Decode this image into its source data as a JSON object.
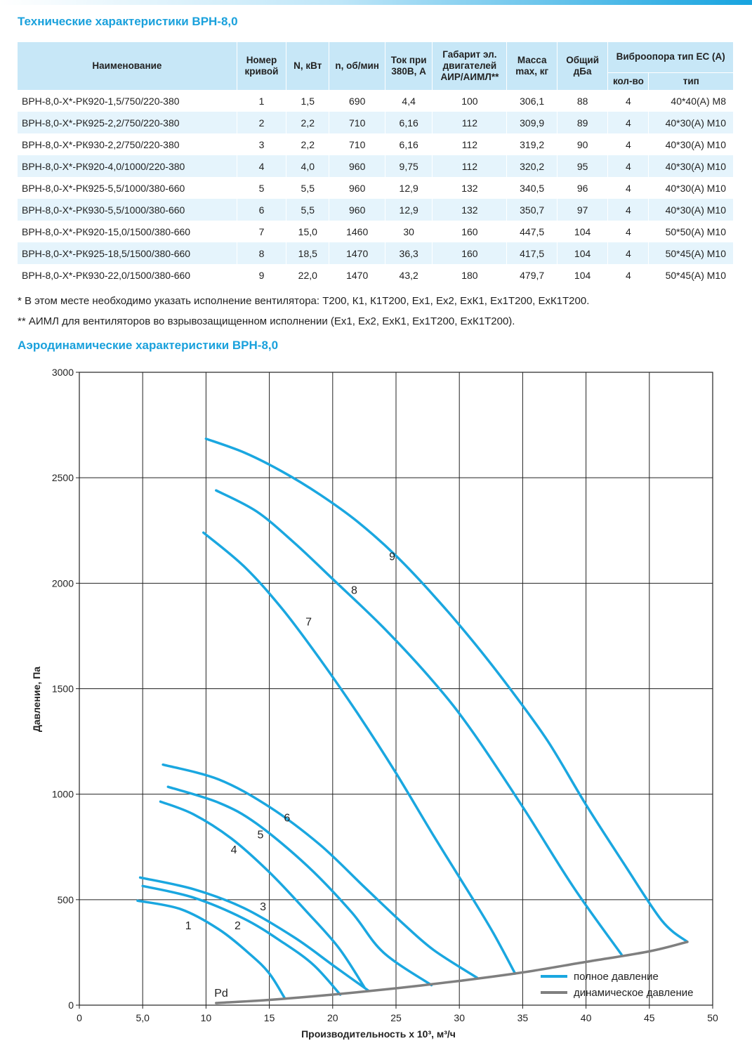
{
  "title_tech": "Технические характеристики ВРН-8,0",
  "title_aero": "Аэродинамические характеристики ВРН-8,0",
  "table": {
    "headers": {
      "name": "Наименование",
      "curve": "Номер кривой",
      "power": "N, кВт",
      "rpm": "n, об/мин",
      "current": "Ток при 380В, А",
      "frame": "Габарит эл. двигателей АИР/АИМЛ**",
      "mass": "Масса max, кг",
      "noise": "Общий дБа",
      "vibro": "Виброопора тип ЕС (А)",
      "vibro_qty": "кол-во",
      "vibro_type": "тип"
    },
    "rows": [
      {
        "name": "ВРН-8,0-Х*-РК920-1,5/750/220-380",
        "curve": "1",
        "power": "1,5",
        "rpm": "690",
        "current": "4,4",
        "frame": "100",
        "mass": "306,1",
        "noise": "88",
        "qty": "4",
        "type": "40*40(А) М8"
      },
      {
        "name": "ВРН-8,0-Х*-РК925-2,2/750/220-380",
        "curve": "2",
        "power": "2,2",
        "rpm": "710",
        "current": "6,16",
        "frame": "112",
        "mass": "309,9",
        "noise": "89",
        "qty": "4",
        "type": "40*30(А) М10"
      },
      {
        "name": "ВРН-8,0-Х*-РК930-2,2/750/220-380",
        "curve": "3",
        "power": "2,2",
        "rpm": "710",
        "current": "6,16",
        "frame": "112",
        "mass": "319,2",
        "noise": "90",
        "qty": "4",
        "type": "40*30(А) М10"
      },
      {
        "name": "ВРН-8,0-Х*-РК920-4,0/1000/220-380",
        "curve": "4",
        "power": "4,0",
        "rpm": "960",
        "current": "9,75",
        "frame": "112",
        "mass": "320,2",
        "noise": "95",
        "qty": "4",
        "type": "40*30(А) М10"
      },
      {
        "name": "ВРН-8,0-Х*-РК925-5,5/1000/380-660",
        "curve": "5",
        "power": "5,5",
        "rpm": "960",
        "current": "12,9",
        "frame": "132",
        "mass": "340,5",
        "noise": "96",
        "qty": "4",
        "type": "40*30(А) М10"
      },
      {
        "name": "ВРН-8,0-Х*-РК930-5,5/1000/380-660",
        "curve": "6",
        "power": "5,5",
        "rpm": "960",
        "current": "12,9",
        "frame": "132",
        "mass": "350,7",
        "noise": "97",
        "qty": "4",
        "type": "40*30(А) М10"
      },
      {
        "name": "ВРН-8,0-Х*-РК920-15,0/1500/380-660",
        "curve": "7",
        "power": "15,0",
        "rpm": "1460",
        "current": "30",
        "frame": "160",
        "mass": "447,5",
        "noise": "104",
        "qty": "4",
        "type": "50*50(А) М10"
      },
      {
        "name": "ВРН-8,0-Х*-РК925-18,5/1500/380-660",
        "curve": "8",
        "power": "18,5",
        "rpm": "1470",
        "current": "36,3",
        "frame": "160",
        "mass": "417,5",
        "noise": "104",
        "qty": "4",
        "type": "50*45(А) М10"
      },
      {
        "name": "ВРН-8,0-Х*-РК930-22,0/1500/380-660",
        "curve": "9",
        "power": "22,0",
        "rpm": "1470",
        "current": "43,2",
        "frame": "180",
        "mass": "479,7",
        "noise": "104",
        "qty": "4",
        "type": "50*45(А) М10"
      }
    ]
  },
  "notes": [
    "* В этом месте необходимо указать исполнение вентилятора: Т200, К1, К1Т200, Ех1, Ех2, ЕхК1, Ех1Т200, ЕхК1Т200.",
    "** АИМЛ для вентиляторов во взрывозащищенном исполнении (Ех1, Ех2, ЕхК1, Ех1Т200, ЕхК1Т200)."
  ],
  "colors": {
    "accent": "#1aa1dc",
    "header_bg": "#c7e7f7",
    "row_alt_bg": "#e5f4fc",
    "full_pressure": "#1aa7e0",
    "dynamic_pressure": "#7f7f7f"
  },
  "chart_data": {
    "type": "line",
    "xlabel": "Производительность х 10³, м³/ч",
    "ylabel": "Давление, Па",
    "xlim": [
      0,
      50
    ],
    "ylim": [
      0,
      3000
    ],
    "x_ticks": [
      "0",
      "5,0",
      "10",
      "15",
      "20",
      "25",
      "30",
      "35",
      "40",
      "45",
      "50"
    ],
    "y_ticks": [
      "0",
      "500",
      "1000",
      "1500",
      "2000",
      "2500",
      "3000"
    ],
    "grid": true,
    "legend_position": "bottom-right",
    "legend": [
      "полное давление",
      "динамическое давление"
    ],
    "series": [
      {
        "name": "1",
        "label_at": [
          8.6,
          360
        ],
        "points": [
          [
            4.6,
            495
          ],
          [
            8.0,
            455
          ],
          [
            11.0,
            360
          ],
          [
            13.5,
            240
          ],
          [
            15.0,
            150
          ],
          [
            16.2,
            35
          ]
        ]
      },
      {
        "name": "2",
        "label_at": [
          12.5,
          360
        ],
        "points": [
          [
            5.0,
            565
          ],
          [
            9.0,
            510
          ],
          [
            13.0,
            410
          ],
          [
            16.0,
            300
          ],
          [
            18.5,
            190
          ],
          [
            20.6,
            50
          ]
        ]
      },
      {
        "name": "3",
        "label_at": [
          14.5,
          450
        ],
        "points": [
          [
            4.8,
            605
          ],
          [
            9.0,
            550
          ],
          [
            13.0,
            460
          ],
          [
            17.0,
            320
          ],
          [
            20.0,
            190
          ],
          [
            22.8,
            70
          ]
        ]
      },
      {
        "name": "4",
        "label_at": [
          12.2,
          720
        ],
        "points": [
          [
            6.4,
            965
          ],
          [
            9.0,
            905
          ],
          [
            12.0,
            790
          ],
          [
            15.0,
            630
          ],
          [
            18.0,
            440
          ],
          [
            20.5,
            270
          ],
          [
            22.5,
            85
          ]
        ]
      },
      {
        "name": "5",
        "label_at": [
          14.3,
          790
        ],
        "points": [
          [
            7.0,
            1035
          ],
          [
            11.0,
            960
          ],
          [
            14.0,
            860
          ],
          [
            18.0,
            660
          ],
          [
            21.5,
            440
          ],
          [
            24.0,
            250
          ],
          [
            27.8,
            95
          ]
        ]
      },
      {
        "name": "6",
        "label_at": [
          16.4,
          870
        ],
        "points": [
          [
            6.6,
            1140
          ],
          [
            11.0,
            1070
          ],
          [
            15.0,
            940
          ],
          [
            19.0,
            760
          ],
          [
            22.5,
            560
          ],
          [
            25.5,
            390
          ],
          [
            28.0,
            260
          ],
          [
            31.4,
            130
          ]
        ]
      },
      {
        "name": "7",
        "label_at": [
          18.1,
          1800
        ],
        "points": [
          [
            9.8,
            2240
          ],
          [
            13.0,
            2080
          ],
          [
            16.0,
            1880
          ],
          [
            19.0,
            1640
          ],
          [
            22.0,
            1380
          ],
          [
            25.0,
            1100
          ],
          [
            28.0,
            800
          ],
          [
            31.0,
            510
          ],
          [
            32.7,
            340
          ],
          [
            34.4,
            150
          ]
        ]
      },
      {
        "name": "8",
        "label_at": [
          21.7,
          1950
        ],
        "points": [
          [
            10.8,
            2440
          ],
          [
            14.0,
            2340
          ],
          [
            17.0,
            2190
          ],
          [
            20.0,
            2020
          ],
          [
            24.0,
            1790
          ],
          [
            28.0,
            1530
          ],
          [
            31.0,
            1300
          ],
          [
            35.0,
            940
          ],
          [
            39.0,
            560
          ],
          [
            42.8,
            240
          ]
        ]
      },
      {
        "name": "9",
        "label_at": [
          24.7,
          2110
        ],
        "points": [
          [
            10.0,
            2685
          ],
          [
            13.0,
            2620
          ],
          [
            16.0,
            2530
          ],
          [
            19.0,
            2420
          ],
          [
            22.0,
            2290
          ],
          [
            25.0,
            2130
          ],
          [
            28.0,
            1940
          ],
          [
            31.0,
            1730
          ],
          [
            34.0,
            1500
          ],
          [
            37.0,
            1250
          ],
          [
            40.0,
            950
          ],
          [
            43.0,
            670
          ],
          [
            46.0,
            400
          ],
          [
            48.0,
            300
          ]
        ]
      },
      {
        "name": "Pd",
        "label_at": [
          11.2,
          40
        ],
        "dashed": false,
        "dynamic": true,
        "points": [
          [
            10.8,
            10
          ],
          [
            15.0,
            25
          ],
          [
            20.0,
            50
          ],
          [
            25.0,
            80
          ],
          [
            30.0,
            115
          ],
          [
            35.0,
            155
          ],
          [
            40.0,
            205
          ],
          [
            45.0,
            255
          ],
          [
            48.0,
            300
          ]
        ]
      }
    ]
  }
}
